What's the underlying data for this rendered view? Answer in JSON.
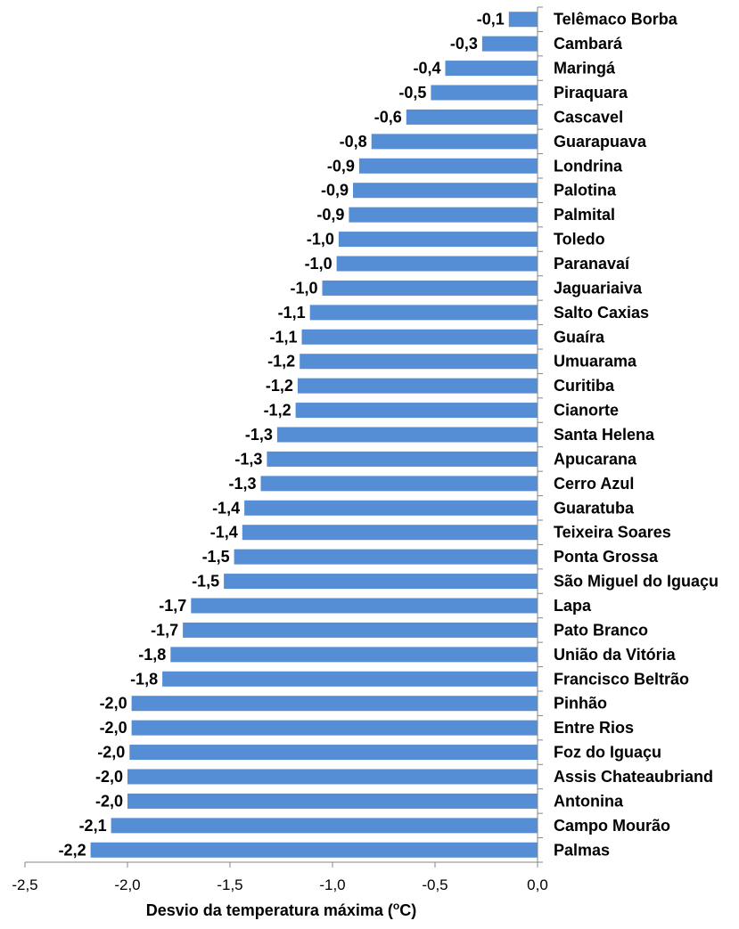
{
  "chart_data": {
    "type": "bar",
    "orientation": "horizontal",
    "categories": [
      "Telêmaco Borba",
      "Cambará",
      "Maringá",
      "Piraquara",
      "Cascavel",
      "Guarapuava",
      "Londrina",
      "Palotina",
      "Palmital",
      "Toledo",
      "Paranavaí",
      "Jaguariaiva",
      "Salto Caxias",
      "Guaíra",
      "Umuarama",
      "Curitiba",
      "Cianorte",
      "Santa Helena",
      "Apucarana",
      "Cerro Azul",
      "Guaratuba",
      "Teixeira Soares",
      "Ponta Grossa",
      "São Miguel do Iguaçu",
      "Lapa",
      "Pato Branco",
      "União da Vitória",
      "Francisco Beltrão",
      "Pinhão",
      "Entre Rios",
      "Foz do Iguaçu",
      "Assis Chateaubriand",
      "Antonina",
      "Campo Mourão",
      "Palmas"
    ],
    "values": [
      -0.14,
      -0.27,
      -0.45,
      -0.52,
      -0.64,
      -0.81,
      -0.87,
      -0.9,
      -0.92,
      -0.97,
      -0.98,
      -1.05,
      -1.11,
      -1.15,
      -1.16,
      -1.17,
      -1.18,
      -1.27,
      -1.32,
      -1.35,
      -1.43,
      -1.44,
      -1.48,
      -1.53,
      -1.69,
      -1.73,
      -1.79,
      -1.83,
      -1.98,
      -1.98,
      -1.99,
      -2.0,
      -2.0,
      -2.08,
      -2.18
    ],
    "data_labels": [
      "-0,1",
      "-0,3",
      "-0,4",
      "-0,5",
      "-0,6",
      "-0,8",
      "-0,9",
      "-0,9",
      "-0,9",
      "-1,0",
      "-1,0",
      "-1,0",
      "-1,1",
      "-1,1",
      "-1,2",
      "-1,2",
      "-1,2",
      "-1,3",
      "-1,3",
      "-1,3",
      "-1,4",
      "-1,4",
      "-1,5",
      "-1,5",
      "-1,7",
      "-1,7",
      "-1,8",
      "-1,8",
      "-2,0",
      "-2,0",
      "-2,0",
      "-2,0",
      "-2,0",
      "-2,1",
      "-2,2"
    ],
    "xlabel": "Desvio da temperatura máxima (",
    "xlabel_sup": "o",
    "xlabel_tail": "C)",
    "xlim": [
      -2.5,
      0.0
    ],
    "xticks": [
      -2.5,
      -2.0,
      -1.5,
      -1.0,
      -0.5,
      0.0
    ],
    "xtick_labels": [
      "-2,5",
      "-2,0",
      "-1,5",
      "-1,0",
      "-0,5",
      "0,0"
    ],
    "bar_color": "#558ED5",
    "grid": false,
    "legend": "none"
  }
}
